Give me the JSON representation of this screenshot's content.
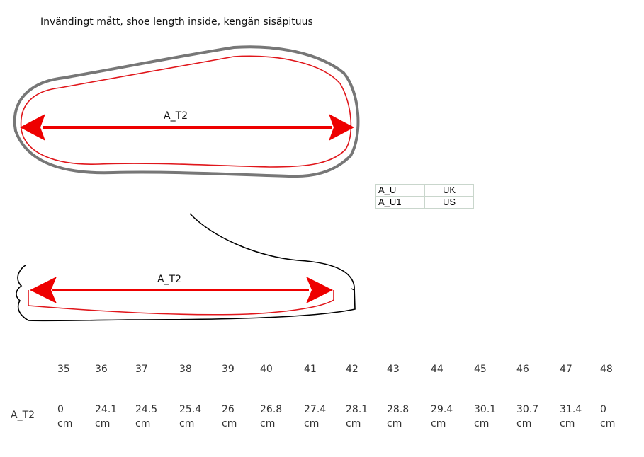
{
  "title": "Invändingt mått, shoe length inside, kengän sisäpituus",
  "diagram": {
    "top_label": "A_T2",
    "side_label": "A_T2",
    "colors": {
      "arrow": "#ee0000",
      "inner_outline": "#e0161b",
      "outer_outline": "#777777",
      "profile": "#000000"
    }
  },
  "code_table": [
    {
      "code": "A_U",
      "region": "UK"
    },
    {
      "code": "A_U1",
      "region": "US"
    }
  ],
  "size_table": {
    "label": "A_T2",
    "sizes": [
      "35",
      "36",
      "37",
      "38",
      "39",
      "40",
      "41",
      "42",
      "43",
      "44",
      "45",
      "46",
      "47",
      "48"
    ],
    "values": [
      "0",
      "24.1",
      "24.5",
      "25.4",
      "26",
      "26.8",
      "27.4",
      "28.1",
      "28.8",
      "29.4",
      "30.1",
      "30.7",
      "31.4",
      "0"
    ],
    "unit": "cm"
  }
}
